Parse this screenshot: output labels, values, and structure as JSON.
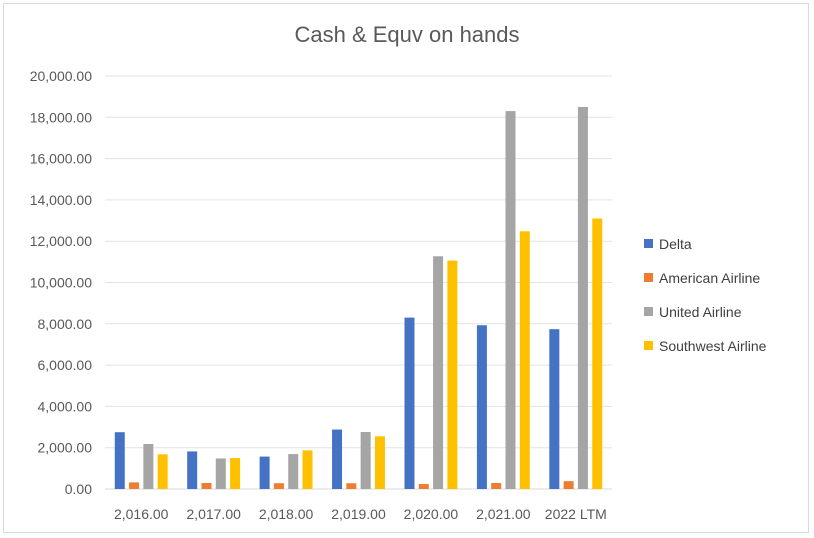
{
  "chart_data": {
    "type": "bar",
    "title": "Cash & Equv on hands",
    "xlabel": "",
    "ylabel": "",
    "categories": [
      "2,016.00",
      "2,017.00",
      "2,018.00",
      "2,019.00",
      "2,020.00",
      "2,021.00",
      "2022 LTM"
    ],
    "series": [
      {
        "name": "Delta",
        "color": "#4472C4",
        "values": [
          2750,
          1820,
          1570,
          2880,
          8300,
          7930,
          7740
        ]
      },
      {
        "name": "American Airline",
        "color": "#ED7D31",
        "values": [
          320,
          290,
          280,
          280,
          240,
          290,
          380
        ]
      },
      {
        "name": "United Airline",
        "color": "#A5A5A5",
        "values": [
          2180,
          1480,
          1690,
          2760,
          11270,
          18300,
          18500
        ]
      },
      {
        "name": "Southwest Airline",
        "color": "#FFC000",
        "values": [
          1680,
          1500,
          1870,
          2550,
          11060,
          12480,
          13100
        ]
      }
    ],
    "ylim": [
      0,
      20000
    ],
    "yticks": [
      "0.00",
      "2,000.00",
      "4,000.00",
      "6,000.00",
      "8,000.00",
      "10,000.00",
      "12,000.00",
      "14,000.00",
      "16,000.00",
      "18,000.00",
      "20,000.00"
    ],
    "grid": true,
    "legend_position": "right"
  }
}
